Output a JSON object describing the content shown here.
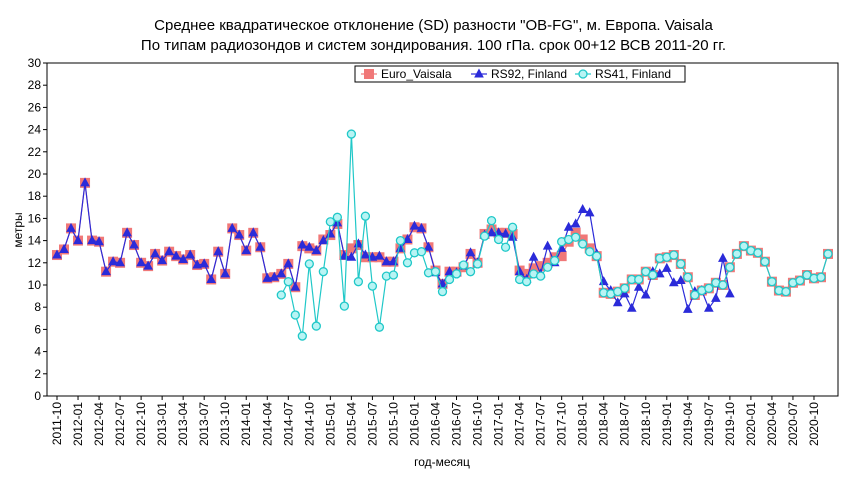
{
  "chart_data": {
    "type": "line",
    "title": "Среднее квадратическое отклонение (SD) разности \"OB-FG\", м. Европа. Vaisala",
    "subtitle": "По типам радиозондов и систем зондирования. 100 гПа. срок 00+12 ВСВ 2011-20 гг.",
    "xlabel": "год-месяц",
    "ylabel": "метры",
    "ylim": [
      0,
      30
    ],
    "yticks": [
      0,
      2,
      4,
      6,
      8,
      10,
      12,
      14,
      16,
      18,
      20,
      22,
      24,
      26,
      28,
      30
    ],
    "grid": true,
    "legend_position": "top-right",
    "x_start": "2011-10",
    "x_tick_labels": [
      "2011-10",
      "2012-01",
      "2012-04",
      "2012-07",
      "2012-10",
      "2013-01",
      "2013-04",
      "2013-07",
      "2013-10",
      "2014-01",
      "2014-04",
      "2014-07",
      "2014-10",
      "2015-01",
      "2015-04",
      "2015-07",
      "2015-10",
      "2016-01",
      "2016-04",
      "2016-07",
      "2016-10",
      "2017-01",
      "2017-04",
      "2017-07",
      "2017-10",
      "2018-01",
      "2018-04",
      "2018-07",
      "2018-10",
      "2019-01",
      "2019-04",
      "2019-07",
      "2019-10",
      "2020-01",
      "2020-04",
      "2020-07",
      "2020-10"
    ],
    "series": [
      {
        "name": "Euro_Vaisala",
        "color": "#f07878",
        "marker": "square",
        "values": [
          12.7,
          13.2,
          15.1,
          14.0,
          19.2,
          14.0,
          13.9,
          11.2,
          12.1,
          12.0,
          14.7,
          13.6,
          12.0,
          11.7,
          12.8,
          12.2,
          13.0,
          12.6,
          12.3,
          12.7,
          11.8,
          11.9,
          10.5,
          13.0,
          11.0,
          15.1,
          14.5,
          13.1,
          14.7,
          13.4,
          10.6,
          10.7,
          11.0,
          11.9,
          9.8,
          13.5,
          13.3,
          13.1,
          14.1,
          14.5,
          15.5,
          12.7,
          13.3,
          13.6,
          12.5,
          12.5,
          12.5,
          12.1,
          12.1,
          13.3,
          14.1,
          15.2,
          15.1,
          13.4,
          11.3,
          10.1,
          11.2,
          11.2,
          11.6,
          12.8,
          12.0,
          14.6,
          15.0,
          14.7,
          14.7,
          14.6,
          11.3,
          11.0,
          11.5,
          11.7,
          12.0,
          12.5,
          12.6,
          13.9,
          14.7,
          14.1,
          13.3,
          12.6,
          9.3,
          9.2,
          9.4,
          9.7,
          10.5,
          10.5,
          11.2,
          10.9,
          12.4,
          12.5,
          12.7,
          11.9,
          10.7,
          9.1,
          9.5,
          9.7,
          10.2,
          10.0,
          11.6,
          12.8,
          13.5,
          13.1,
          12.9,
          12.1,
          10.3,
          9.5,
          9.4,
          10.2,
          10.4,
          10.9,
          10.6,
          10.7,
          12.8
        ]
      },
      {
        "name": "RS92, Finland",
        "color": "#2b2bd9",
        "marker": "triangle",
        "values": [
          12.7,
          13.2,
          15.1,
          14.0,
          19.2,
          14.0,
          13.9,
          11.2,
          12.1,
          12.0,
          14.7,
          13.6,
          12.0,
          11.7,
          12.8,
          12.2,
          13.0,
          12.6,
          12.3,
          12.7,
          11.8,
          11.9,
          10.5,
          13.0,
          11.0,
          15.1,
          14.5,
          13.1,
          14.7,
          13.4,
          10.6,
          10.7,
          11.0,
          11.9,
          9.8,
          13.6,
          13.4,
          13.1,
          14.0,
          14.6,
          15.6,
          12.6,
          12.5,
          13.7,
          12.7,
          12.5,
          12.6,
          12.1,
          12.1,
          13.3,
          14.1,
          15.3,
          15.1,
          13.4,
          11.1,
          10.1,
          11.2,
          11.1,
          11.7,
          12.9,
          12.0,
          14.5,
          14.7,
          14.7,
          14.6,
          14.3,
          11.2,
          10.5,
          12.5,
          11.0,
          13.5,
          12.0,
          13.3,
          15.2,
          15.5,
          16.8,
          16.5,
          12.8,
          10.3,
          9.5,
          8.4,
          9.2,
          7.9,
          9.8,
          9.1,
          11.2,
          11.0,
          11.5,
          10.2,
          10.4,
          7.8,
          9.4,
          9.5,
          7.9,
          8.8,
          12.4,
          9.2
        ]
      },
      {
        "name": "RS41, Finland",
        "color": "#20c8c8",
        "marker": "circle",
        "values": [
          null,
          null,
          null,
          null,
          null,
          null,
          null,
          null,
          null,
          null,
          null,
          null,
          null,
          null,
          null,
          null,
          null,
          null,
          null,
          null,
          null,
          null,
          null,
          null,
          null,
          null,
          null,
          null,
          null,
          null,
          null,
          null,
          9.1,
          10.3,
          7.3,
          5.4,
          11.9,
          6.3,
          11.2,
          15.7,
          16.1,
          8.1,
          23.6,
          10.3,
          16.2,
          9.9,
          6.2,
          10.8,
          10.9,
          14.0,
          12.0,
          12.9,
          13.0,
          11.1,
          11.2,
          9.4,
          10.5,
          11.0,
          11.8,
          11.2,
          11.9,
          14.4,
          15.8,
          14.1,
          13.4,
          15.2,
          10.5,
          10.3,
          11.0,
          10.8,
          11.6,
          12.2,
          13.9,
          14.1,
          14.3,
          13.7,
          13.0,
          12.6,
          9.3,
          9.2,
          9.4,
          9.7,
          10.5,
          10.5,
          11.2,
          10.9,
          12.4,
          12.5,
          12.7,
          11.9,
          10.7,
          9.1,
          9.5,
          9.7,
          10.2,
          10.0,
          11.6,
          12.8,
          13.5,
          13.1,
          12.9,
          12.1,
          10.3,
          9.5,
          9.4,
          10.2,
          10.4,
          10.9,
          10.6,
          10.7,
          12.8
        ]
      }
    ]
  }
}
